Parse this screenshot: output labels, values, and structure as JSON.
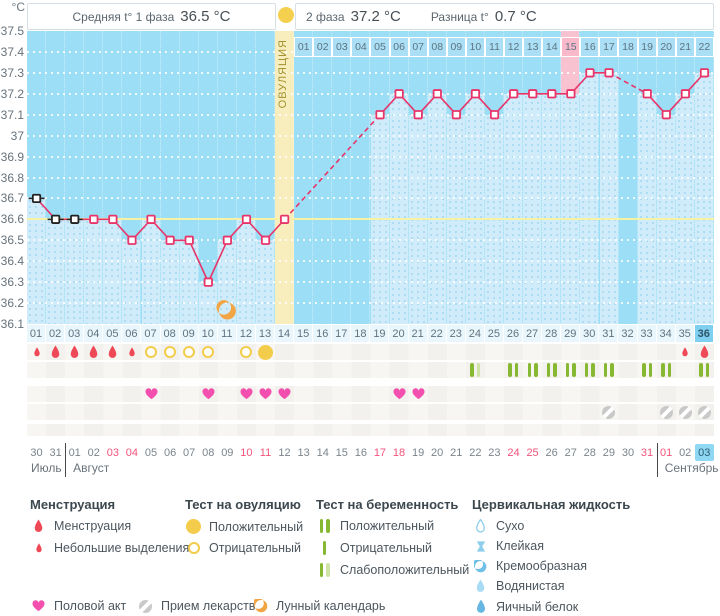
{
  "header": {
    "unit": "°C",
    "phase1_label": "Средняя t° 1 фаза",
    "phase1_value": "36.5 °C",
    "phase2_label": "2 фаза",
    "phase2_value": "37.2 °C",
    "diff_label": "Разница t°",
    "diff_value": "0.7 °C",
    "ovulation_label": "ОВУЛЯЦИЯ"
  },
  "chart_data": {
    "type": "line",
    "ylabel": "°C",
    "ylim": [
      36.1,
      37.5
    ],
    "yticks": [
      "37.5",
      "37.4",
      "37.3",
      "37.2",
      "37.1",
      "37",
      "36.9",
      "36.8",
      "36.7",
      "36.6",
      "36.5",
      "36.4",
      "36.3",
      "36.2",
      "36.1"
    ],
    "grid": "dotted-white",
    "coverline": 36.6,
    "x_day_labels": [
      "01",
      "02",
      "03",
      "04",
      "05",
      "06",
      "07",
      "08",
      "09",
      "10",
      "11",
      "12",
      "13",
      "14",
      "15",
      "16",
      "17",
      "18",
      "19",
      "20",
      "21",
      "22",
      "23",
      "24",
      "25",
      "26",
      "27",
      "28",
      "29",
      "30",
      "31",
      "32",
      "33",
      "34",
      "35",
      "36"
    ],
    "current_day": 36,
    "ovulation_day": 14,
    "highlighted_day": 29,
    "missing_days": [
      15,
      16,
      17,
      18,
      32
    ],
    "moon_day": 11,
    "dpo_start_day": 15,
    "dpo_labels": [
      "01",
      "02",
      "03",
      "04",
      "05",
      "06",
      "07",
      "08",
      "09",
      "10",
      "11",
      "12",
      "13",
      "14",
      "15",
      "16",
      "17",
      "18",
      "19",
      "20",
      "21",
      "22"
    ],
    "dpo_highlight_label": "15",
    "series": [
      {
        "name": "basal-temperature",
        "points": [
          {
            "day": 1,
            "temp": 36.7,
            "marker": "black"
          },
          {
            "day": 2,
            "temp": 36.6,
            "marker": "black"
          },
          {
            "day": 3,
            "temp": 36.6,
            "marker": "black"
          },
          {
            "day": 4,
            "temp": 36.6
          },
          {
            "day": 5,
            "temp": 36.6
          },
          {
            "day": 6,
            "temp": 36.5
          },
          {
            "day": 7,
            "temp": 36.6
          },
          {
            "day": 8,
            "temp": 36.5
          },
          {
            "day": 9,
            "temp": 36.5
          },
          {
            "day": 10,
            "temp": 36.3
          },
          {
            "day": 11,
            "temp": 36.5
          },
          {
            "day": 12,
            "temp": 36.6
          },
          {
            "day": 13,
            "temp": 36.5
          },
          {
            "day": 14,
            "temp": 36.6
          },
          {
            "day": 19,
            "temp": 37.1
          },
          {
            "day": 20,
            "temp": 37.2
          },
          {
            "day": 21,
            "temp": 37.1
          },
          {
            "day": 22,
            "temp": 37.2
          },
          {
            "day": 23,
            "temp": 37.1
          },
          {
            "day": 24,
            "temp": 37.2
          },
          {
            "day": 25,
            "temp": 37.1
          },
          {
            "day": 26,
            "temp": 37.2
          },
          {
            "day": 27,
            "temp": 37.2
          },
          {
            "day": 28,
            "temp": 37.2
          },
          {
            "day": 29,
            "temp": 37.2
          },
          {
            "day": 30,
            "temp": 37.3
          },
          {
            "day": 31,
            "temp": 37.3
          },
          {
            "day": 33,
            "temp": 37.2
          },
          {
            "day": 34,
            "temp": 37.1
          },
          {
            "day": 35,
            "temp": 37.2
          },
          {
            "day": 36,
            "temp": 37.3
          }
        ]
      }
    ]
  },
  "events": {
    "menstruation": [
      {
        "day": 1,
        "size": "small"
      },
      {
        "day": 2,
        "size": "big"
      },
      {
        "day": 3,
        "size": "big"
      },
      {
        "day": 4,
        "size": "big"
      },
      {
        "day": 5,
        "size": "big"
      },
      {
        "day": 6,
        "size": "small"
      },
      {
        "day": 35,
        "size": "small"
      },
      {
        "day": 36,
        "size": "big"
      }
    ],
    "ovulation_tests": [
      {
        "day": 7,
        "result": "negative"
      },
      {
        "day": 8,
        "result": "negative"
      },
      {
        "day": 9,
        "result": "negative"
      },
      {
        "day": 10,
        "result": "negative"
      },
      {
        "day": 12,
        "result": "negative"
      },
      {
        "day": 13,
        "result": "positive"
      }
    ],
    "pregnancy_tests": [
      {
        "day": 24,
        "result": "weak"
      },
      {
        "day": 26,
        "result": "positive"
      },
      {
        "day": 27,
        "result": "positive"
      },
      {
        "day": 28,
        "result": "positive"
      },
      {
        "day": 29,
        "result": "positive"
      },
      {
        "day": 30,
        "result": "positive"
      },
      {
        "day": 31,
        "result": "positive"
      },
      {
        "day": 33,
        "result": "positive"
      },
      {
        "day": 34,
        "result": "positive"
      },
      {
        "day": 36,
        "result": "positive"
      }
    ],
    "intercourse_days": [
      7,
      10,
      12,
      13,
      14,
      20,
      21
    ],
    "medication_days": [
      31,
      34,
      35,
      36
    ]
  },
  "dates": {
    "labels": [
      "30",
      "31",
      "01",
      "02",
      "03",
      "04",
      "05",
      "06",
      "07",
      "08",
      "09",
      "10",
      "11",
      "12",
      "13",
      "14",
      "15",
      "16",
      "17",
      "18",
      "19",
      "20",
      "21",
      "22",
      "23",
      "24",
      "25",
      "26",
      "27",
      "28",
      "29",
      "30",
      "31",
      "01",
      "02",
      "03"
    ],
    "weekend_indices": [
      4,
      5,
      11,
      12,
      18,
      19,
      25,
      26,
      32,
      33
    ],
    "current_index": 35,
    "months": [
      {
        "label": "Июль",
        "from_day": 1,
        "to_day": 2
      },
      {
        "label": "Август",
        "from_day": 3,
        "to_day": 33
      },
      {
        "label": "Сентябрь",
        "from_day": 34,
        "to_day": 36
      }
    ]
  },
  "legend": {
    "menstruation": {
      "title": "Менструация",
      "items": [
        {
          "icon": "drop-big",
          "label": "Менструация"
        },
        {
          "icon": "drop-small",
          "label": "Небольшие выделения"
        }
      ]
    },
    "ovulation_test": {
      "title": "Тест на овуляцию",
      "items": [
        {
          "icon": "circle-filled",
          "label": "Положительный"
        },
        {
          "icon": "circle-outline",
          "label": "Отрицательный"
        }
      ]
    },
    "pregnancy_test": {
      "title": "Тест на беременность",
      "items": [
        {
          "icon": "bars-two",
          "label": "Положительный"
        },
        {
          "icon": "bar-one",
          "label": "Отрицательный"
        },
        {
          "icon": "bars-weak",
          "label": "Слабоположительный"
        }
      ]
    },
    "cervical_fluid": {
      "title": "Цервикальная жидкость",
      "items": [
        {
          "icon": "drop-outline",
          "label": "Сухо"
        },
        {
          "icon": "sticky",
          "label": "Клейкая"
        },
        {
          "icon": "drop-half",
          "label": "Кремообразная"
        },
        {
          "icon": "drop-light",
          "label": "Водянистая"
        },
        {
          "icon": "drop-solid",
          "label": "Яичный белок"
        }
      ]
    },
    "misc": [
      {
        "icon": "heart",
        "label": "Половой акт"
      },
      {
        "icon": "pill",
        "label": "Прием лекарств"
      },
      {
        "icon": "moon",
        "label": "Лунный календарь"
      }
    ]
  },
  "colors": {
    "chart_bg": "#9cdef5",
    "measured_fill": "#d0ecfa",
    "ovulation_column": "#f8eebd",
    "dpo_highlight": "#f9c2d0",
    "temp_line": "#e73569",
    "coverline": "#f6f2a3",
    "menstruation_red": "#ee4956",
    "ovulation_yellow": "#f2cc4a",
    "pregnancy_green": "#86b832",
    "pregnancy_green_pale": "#cfe3a6",
    "heart_pink": "#f24fae",
    "medication_gray": "#c9c9c9",
    "moon_orange": "#f2a544",
    "cervical_blue": "#8ecdec",
    "current_day_bg": "#7fd0f0"
  }
}
